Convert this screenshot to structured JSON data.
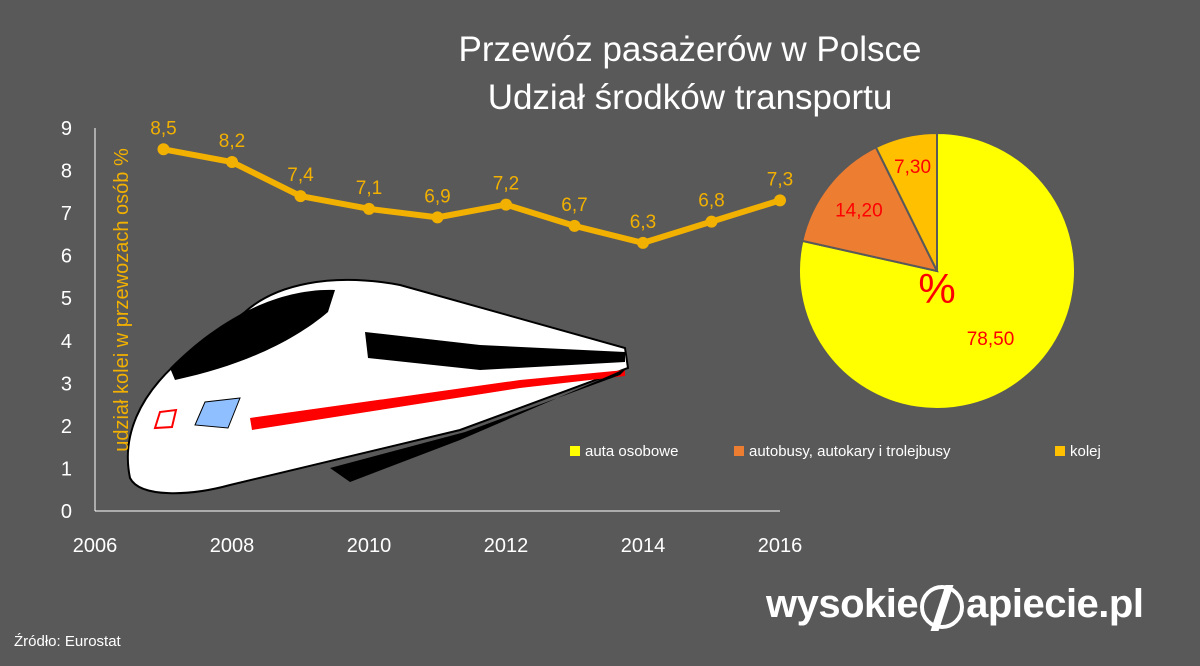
{
  "title": {
    "line1": "Przewóz pasażerów w Polsce",
    "line2": "Udział środków transportu"
  },
  "source": "Źródło: Eurostat",
  "brand": {
    "left": "wysokie",
    "right": "apiecie.pl"
  },
  "colors": {
    "background": "#595959",
    "line": "#f2b000",
    "pie_label": "#ff0000",
    "text": "#ffffff"
  },
  "chart_data": [
    {
      "type": "line",
      "x": [
        2007,
        2008,
        2009,
        2010,
        2011,
        2012,
        2013,
        2014,
        2015,
        2016
      ],
      "series": [
        {
          "values": [
            8.5,
            8.2,
            7.4,
            7.1,
            6.9,
            7.2,
            6.7,
            6.3,
            6.8,
            7.3
          ]
        }
      ],
      "data_labels": [
        "8,5",
        "8,2",
        "7,4",
        "7,1",
        "6,9",
        "7,2",
        "6,7",
        "6,3",
        "6,8",
        "7,3"
      ],
      "xticks": [
        "2006",
        "2008",
        "2010",
        "2012",
        "2014",
        "2016"
      ],
      "yticks": [
        "0",
        "1",
        "2",
        "3",
        "4",
        "5",
        "6",
        "7",
        "8",
        "9"
      ],
      "xlim": [
        2006,
        2016
      ],
      "ylim": [
        0,
        9
      ],
      "ylabel": "udział kolei w przewozach osób %",
      "grid": false
    },
    {
      "type": "pie",
      "categories": [
        "auta osobowe",
        "autobusy, autokary i trolejbusy",
        "kolej"
      ],
      "values": [
        78.5,
        14.2,
        7.3
      ],
      "labels": [
        "78,50",
        "14,20",
        "7,30"
      ],
      "colors": [
        "#ffff00",
        "#ed7d31",
        "#ffc000"
      ],
      "center_label": "%",
      "legend": "bottom"
    }
  ]
}
